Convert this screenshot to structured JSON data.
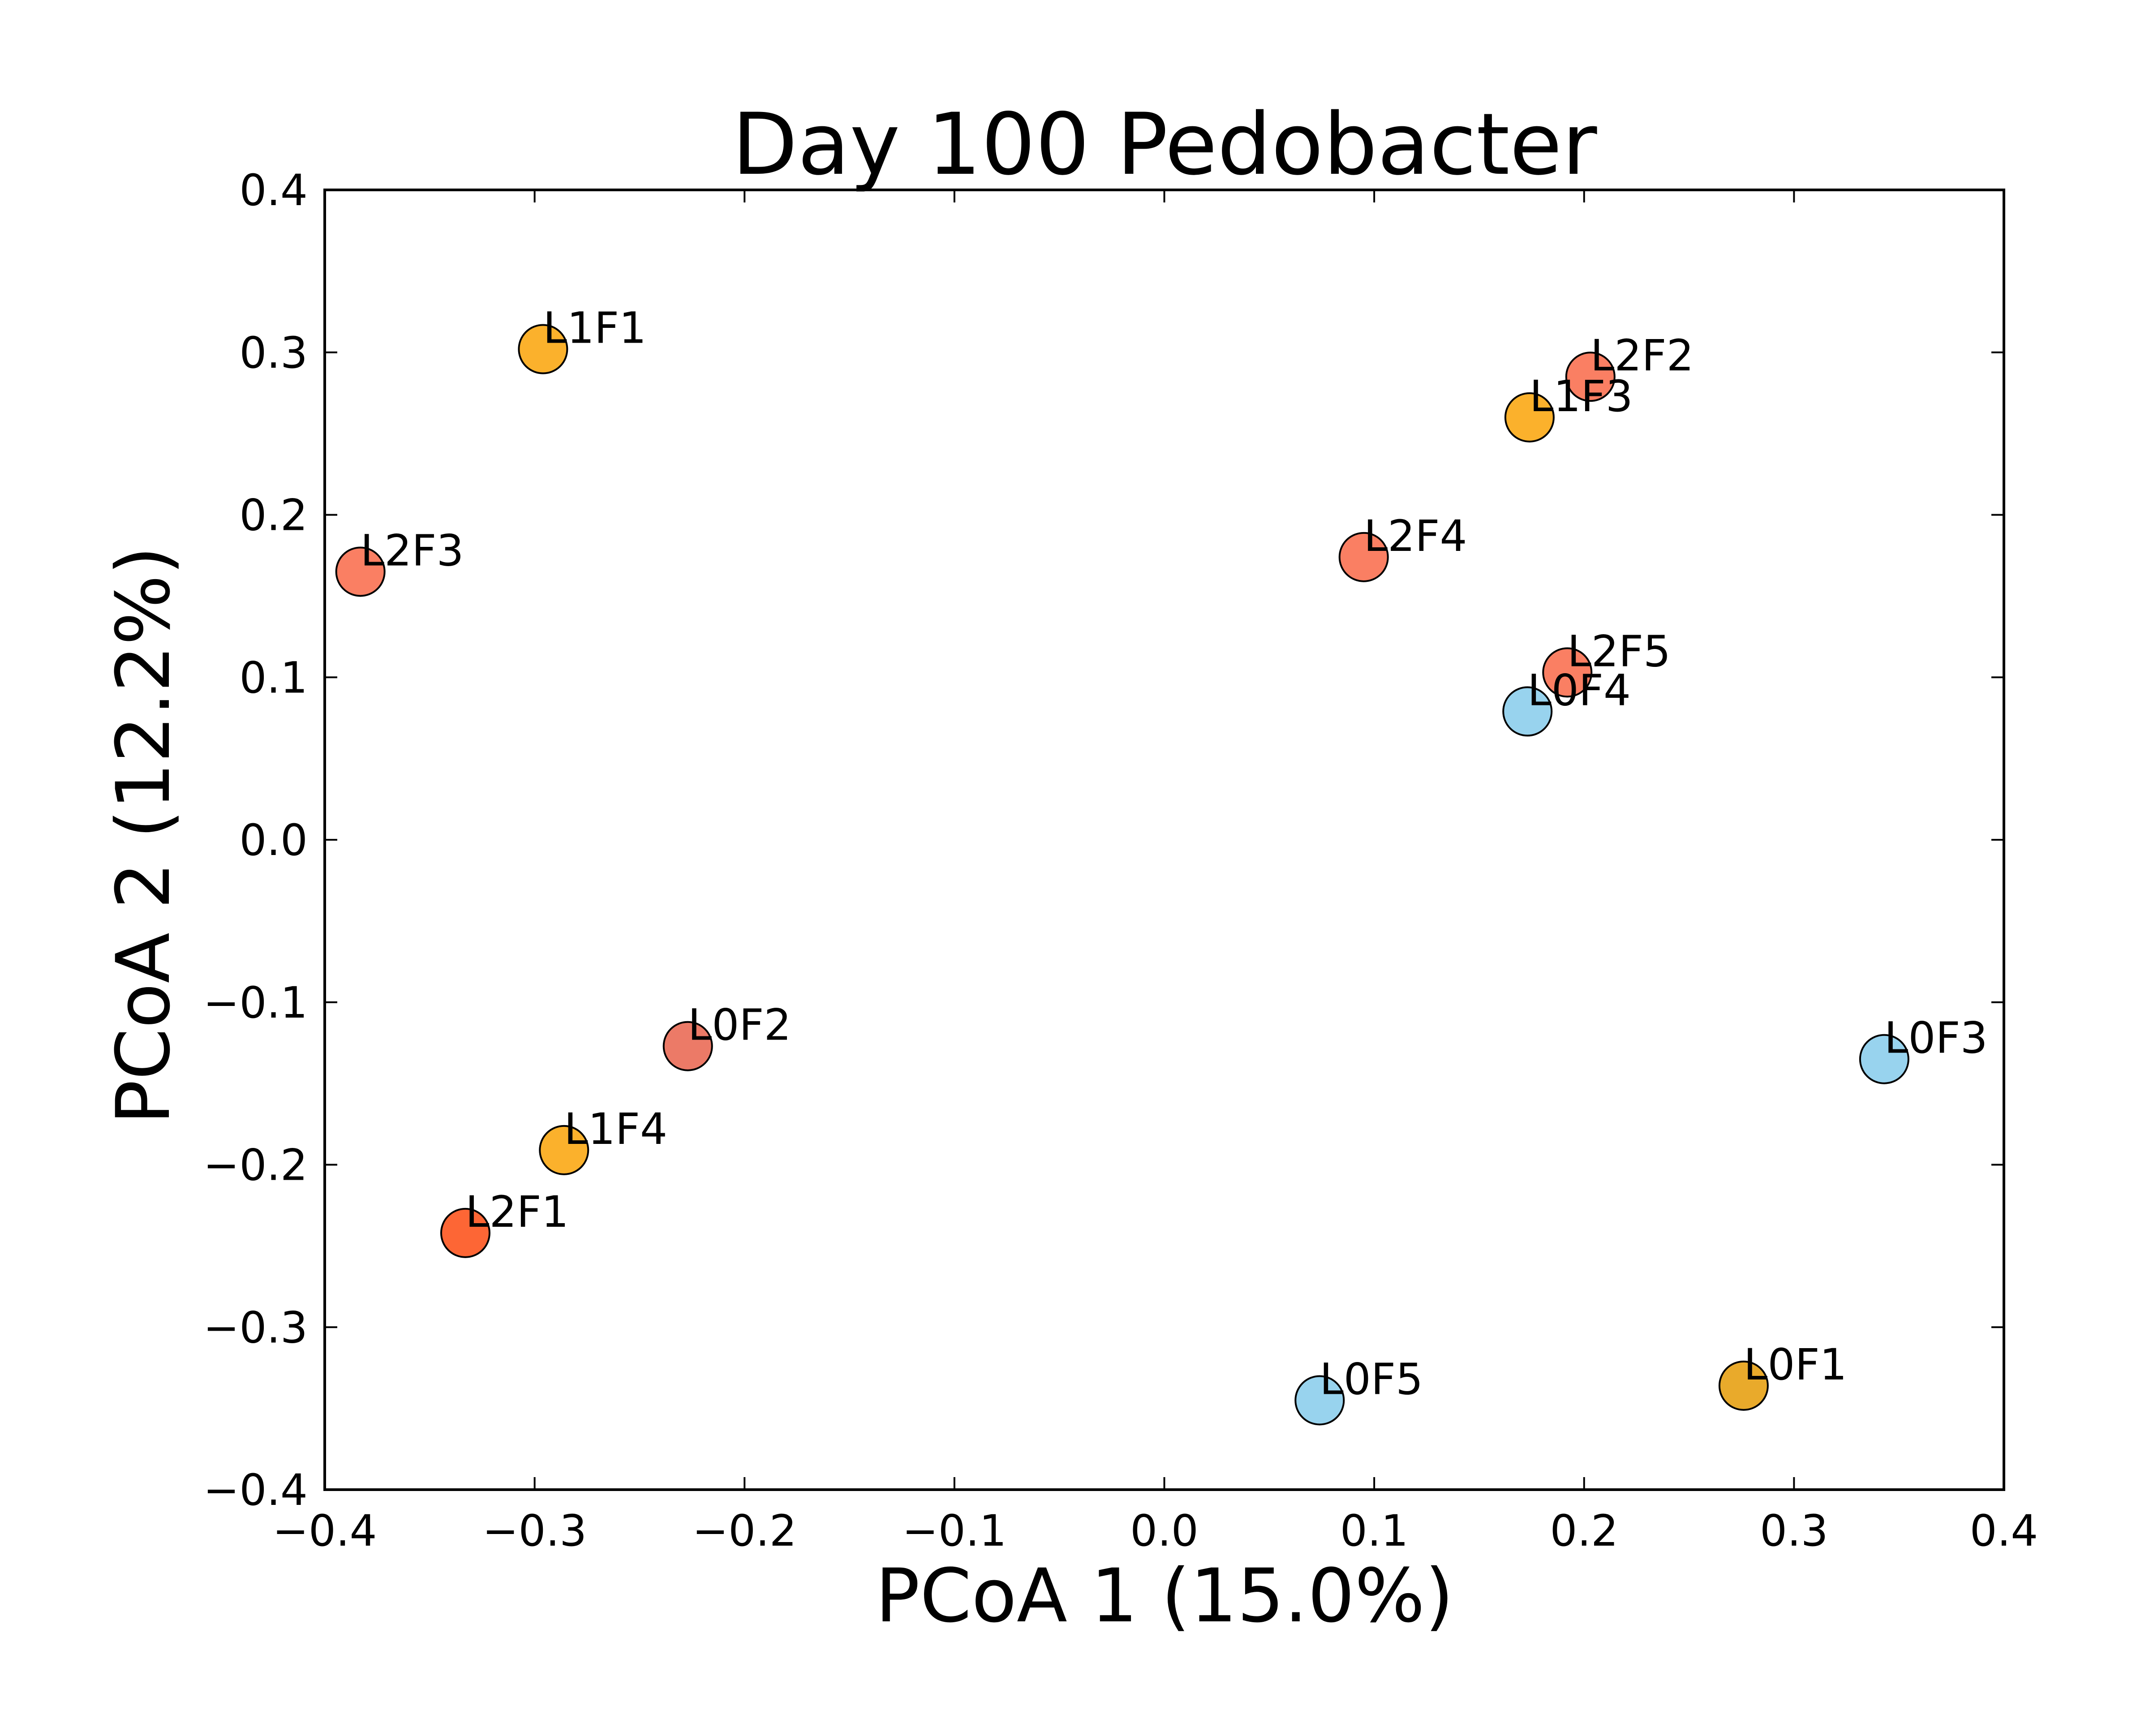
{
  "chart_data": {
    "type": "scatter",
    "title": "Day 100 Pedobacter",
    "xlabel": "PCoA 1 (15.0%)",
    "ylabel": "PCoA 2 (12.2%)",
    "xlim": [
      -0.4,
      0.4
    ],
    "ylim": [
      -0.4,
      0.4
    ],
    "xticks": [
      -0.4,
      -0.3,
      -0.2,
      -0.1,
      0.0,
      0.1,
      0.2,
      0.3,
      0.4
    ],
    "yticks": [
      -0.4,
      -0.3,
      -0.2,
      -0.1,
      0.0,
      0.1,
      0.2,
      0.3,
      0.4
    ],
    "xtick_labels": [
      "−0.4",
      "−0.3",
      "−0.2",
      "−0.1",
      "0.0",
      "0.1",
      "0.2",
      "0.3",
      "0.4"
    ],
    "ytick_labels": [
      "−0.4",
      "−0.3",
      "−0.2",
      "−0.1",
      "0.0",
      "0.1",
      "0.2",
      "0.3",
      "0.4"
    ],
    "grid": false,
    "points": [
      {
        "label": "L1F1",
        "x": -0.296,
        "y": 0.302,
        "color": "#fbb12c"
      },
      {
        "label": "L2F2",
        "x": 0.203,
        "y": 0.285,
        "color": "#fa7f63"
      },
      {
        "label": "L1F3",
        "x": 0.174,
        "y": 0.26,
        "color": "#fbb12c"
      },
      {
        "label": "L2F3",
        "x": -0.383,
        "y": 0.165,
        "color": "#fa7f63"
      },
      {
        "label": "L2F4",
        "x": 0.095,
        "y": 0.174,
        "color": "#fa7f63"
      },
      {
        "label": "L2F5",
        "x": 0.192,
        "y": 0.103,
        "color": "#fa7f63"
      },
      {
        "label": "L0F4",
        "x": 0.173,
        "y": 0.079,
        "color": "#98d3ee"
      },
      {
        "label": "L0F2",
        "x": -0.227,
        "y": -0.127,
        "color": "#ec7a67"
      },
      {
        "label": "L0F3",
        "x": 0.343,
        "y": -0.135,
        "color": "#98d3ee"
      },
      {
        "label": "L1F4",
        "x": -0.286,
        "y": -0.191,
        "color": "#fbb12c"
      },
      {
        "label": "L2F1",
        "x": -0.333,
        "y": -0.242,
        "color": "#fd6635"
      },
      {
        "label": "L0F5",
        "x": 0.074,
        "y": -0.345,
        "color": "#98d3ee"
      },
      {
        "label": "L0F1",
        "x": 0.276,
        "y": -0.336,
        "color": "#e9aa2b"
      }
    ]
  }
}
